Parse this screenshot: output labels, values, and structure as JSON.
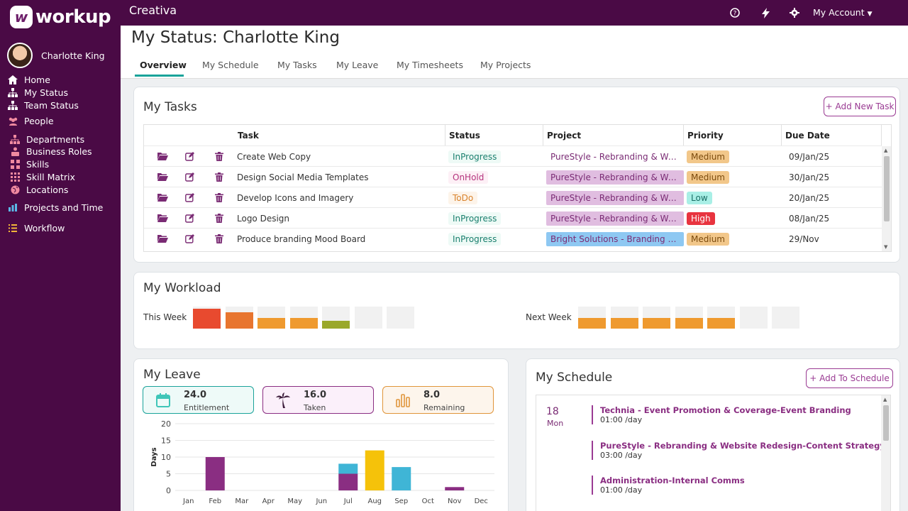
{
  "app": {
    "logo_text": "workup",
    "org_name": "Creativa",
    "account_label": "My Account"
  },
  "user": {
    "name": "Charlotte King"
  },
  "nav": [
    {
      "label": "Home",
      "icon": "home-icon"
    },
    {
      "label": "My Status",
      "icon": "org-chart-icon"
    },
    {
      "label": "Team Status",
      "icon": "org-chart-icon"
    },
    {
      "label": "People",
      "icon": "people-icon"
    },
    {
      "label": "Departments",
      "icon": "department-icon"
    },
    {
      "label": "Business Roles",
      "icon": "roles-icon"
    },
    {
      "label": "Skills",
      "icon": "skills-icon"
    },
    {
      "label": "Skill Matrix",
      "icon": "grid-icon"
    },
    {
      "label": "Locations",
      "icon": "globe-icon"
    },
    {
      "label": "Projects and Time",
      "icon": "bar-chart-icon"
    },
    {
      "label": "Workflow",
      "icon": "list-icon"
    }
  ],
  "page": {
    "title": "My Status: Charlotte King",
    "tabs": [
      "Overview",
      "My Schedule",
      "My Tasks",
      "My Leave",
      "My Timesheets",
      "My Projects"
    ],
    "active_tab": "Overview"
  },
  "tasks": {
    "title": "My Tasks",
    "add_button": "+ Add New Task",
    "columns": [
      "Task",
      "Status",
      "Project",
      "Priority",
      "Due Date"
    ],
    "rows": [
      {
        "task": "Create Web Copy",
        "status": "InProgress",
        "project": "PureStyle - Rebranding & Website Redesign",
        "priority": "Medium",
        "due": "09/Jan/25"
      },
      {
        "task": "Design Social Media Templates",
        "status": "OnHold",
        "project": "PureStyle - Rebranding & Website Redesign",
        "priority": "Medium",
        "due": "30/Jan/25"
      },
      {
        "task": "Develop Icons and Imagery",
        "status": "ToDo",
        "project": "PureStyle - Rebranding & Website Redesign",
        "priority": "Low",
        "due": "20/Jan/25"
      },
      {
        "task": "Logo Design",
        "status": "InProgress",
        "project": "PureStyle - Rebranding & Website Redesign",
        "priority": "High",
        "due": "08/Jan/25"
      },
      {
        "task": "Produce branding Mood Board",
        "status": "InProgress",
        "project": "Bright Solutions - Branding Campaign",
        "priority": "Medium",
        "due": "29/Nov"
      }
    ],
    "status_colors": {
      "InProgress": "#1a7f6e",
      "OnHold": "#b5337d",
      "ToDo": "#d9822b"
    },
    "priority_colors": {
      "Medium": "#f2c78a",
      "Low": "#a9efe6",
      "High": "#e8343f"
    }
  },
  "workload": {
    "title": "My Workload",
    "this_week_label": "This Week",
    "next_week_label": "Next Week",
    "this_week": [
      {
        "level": 0.9,
        "color": "#e84a2f"
      },
      {
        "level": 0.75,
        "color": "#e8752f"
      },
      {
        "level": 0.48,
        "color": "#ef9a2f"
      },
      {
        "level": 0.48,
        "color": "#ef9a2f"
      },
      {
        "level": 0.35,
        "color": "#9aa82a"
      },
      {
        "level": 0,
        "color": "#f1f1f1"
      },
      {
        "level": 0,
        "color": "#f1f1f1"
      }
    ],
    "next_week": [
      {
        "level": 0.48,
        "color": "#ef9a2f"
      },
      {
        "level": 0.48,
        "color": "#ef9a2f"
      },
      {
        "level": 0.48,
        "color": "#ef9a2f"
      },
      {
        "level": 0.48,
        "color": "#ef9a2f"
      },
      {
        "level": 0.48,
        "color": "#ef9a2f"
      },
      {
        "level": 0,
        "color": "#f1f1f1"
      },
      {
        "level": 0,
        "color": "#f1f1f1"
      }
    ]
  },
  "leave": {
    "title": "My Leave",
    "stats": [
      {
        "value": "24.0",
        "label": "Entitlement",
        "icon": "calendar-icon",
        "color": "#1aa39a",
        "bg": "#eefaf8"
      },
      {
        "value": "16.0",
        "label": "Taken",
        "icon": "palm-tree-icon",
        "color": "#8a2e82",
        "bg": "#fbf0fa"
      },
      {
        "value": "8.0",
        "label": "Remaining",
        "icon": "bar-chart-icon",
        "color": "#e0953a",
        "bg": "#fdf5ec"
      }
    ]
  },
  "chart_data": {
    "type": "bar",
    "ylabel": "Days",
    "ylim": [
      0,
      20
    ],
    "yticks": [
      0,
      5,
      10,
      15,
      20
    ],
    "categories": [
      "Jan",
      "Feb",
      "Mar",
      "Apr",
      "May",
      "Jun",
      "Jul",
      "Aug",
      "Sep",
      "Oct",
      "Nov",
      "Dec"
    ],
    "stacked": true,
    "series": [
      {
        "color": "#8a2e82",
        "values": [
          0,
          10,
          0,
          0,
          0,
          0,
          5,
          0,
          0,
          0,
          1,
          0
        ]
      },
      {
        "color": "#3fb5d6",
        "values": [
          0,
          0,
          0,
          0,
          0,
          0,
          3,
          0,
          7,
          0,
          0,
          0
        ]
      },
      {
        "color": "#f5c20a",
        "values": [
          0,
          0,
          0,
          0,
          0,
          0,
          0,
          12,
          0,
          0,
          0,
          0
        ]
      }
    ]
  },
  "schedule": {
    "title": "My Schedule",
    "add_button": "+ Add To Schedule",
    "day": "18",
    "weekday": "Mon",
    "entries": [
      {
        "title": "Technia - Event Promotion & Coverage-Event Branding",
        "time": "01:00 /day"
      },
      {
        "title": "PureStyle - Rebranding & Website Redesign-Content Strategy & Creation",
        "time": "03:00 /day"
      },
      {
        "title": "Administration-Internal Comms",
        "time": "01:00 /day"
      }
    ]
  }
}
